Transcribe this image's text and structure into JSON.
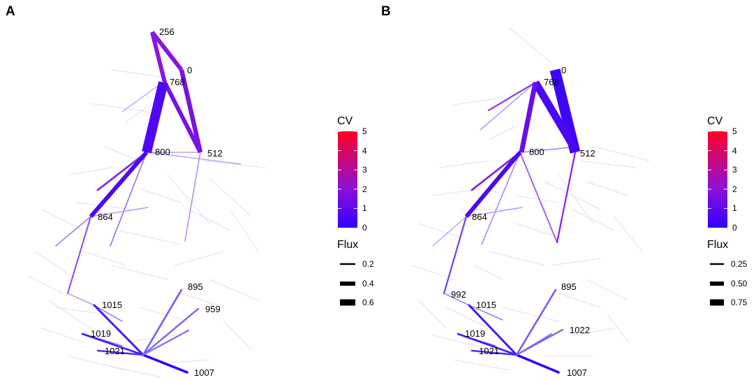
{
  "panels": [
    {
      "label": "A",
      "nodes": [
        "256",
        "0",
        "768",
        "800",
        "512",
        "864",
        "895",
        "959",
        "1015",
        "1019",
        "1021",
        "1007"
      ],
      "legend": {
        "cv_title": "CV",
        "cv_ticks": [
          "5",
          "4",
          "3",
          "2",
          "1",
          "0"
        ],
        "flux_title": "Flux",
        "flux_items": [
          "0.2",
          "0.4",
          "0.6"
        ]
      }
    },
    {
      "label": "B",
      "nodes": [
        "0",
        "768",
        "800",
        "512",
        "864",
        "992",
        "1015",
        "895",
        "1022",
        "1019",
        "1021",
        "1007"
      ],
      "legend": {
        "cv_title": "CV",
        "cv_ticks": [
          "5",
          "4",
          "3",
          "2",
          "1",
          "0"
        ],
        "flux_title": "Flux",
        "flux_items": [
          "0.25",
          "0.50",
          "0.75"
        ]
      }
    }
  ],
  "colors": {
    "cv_low": "#3300ff",
    "cv_mid": "#9b1fd0",
    "cv_high": "#ff0022"
  }
}
